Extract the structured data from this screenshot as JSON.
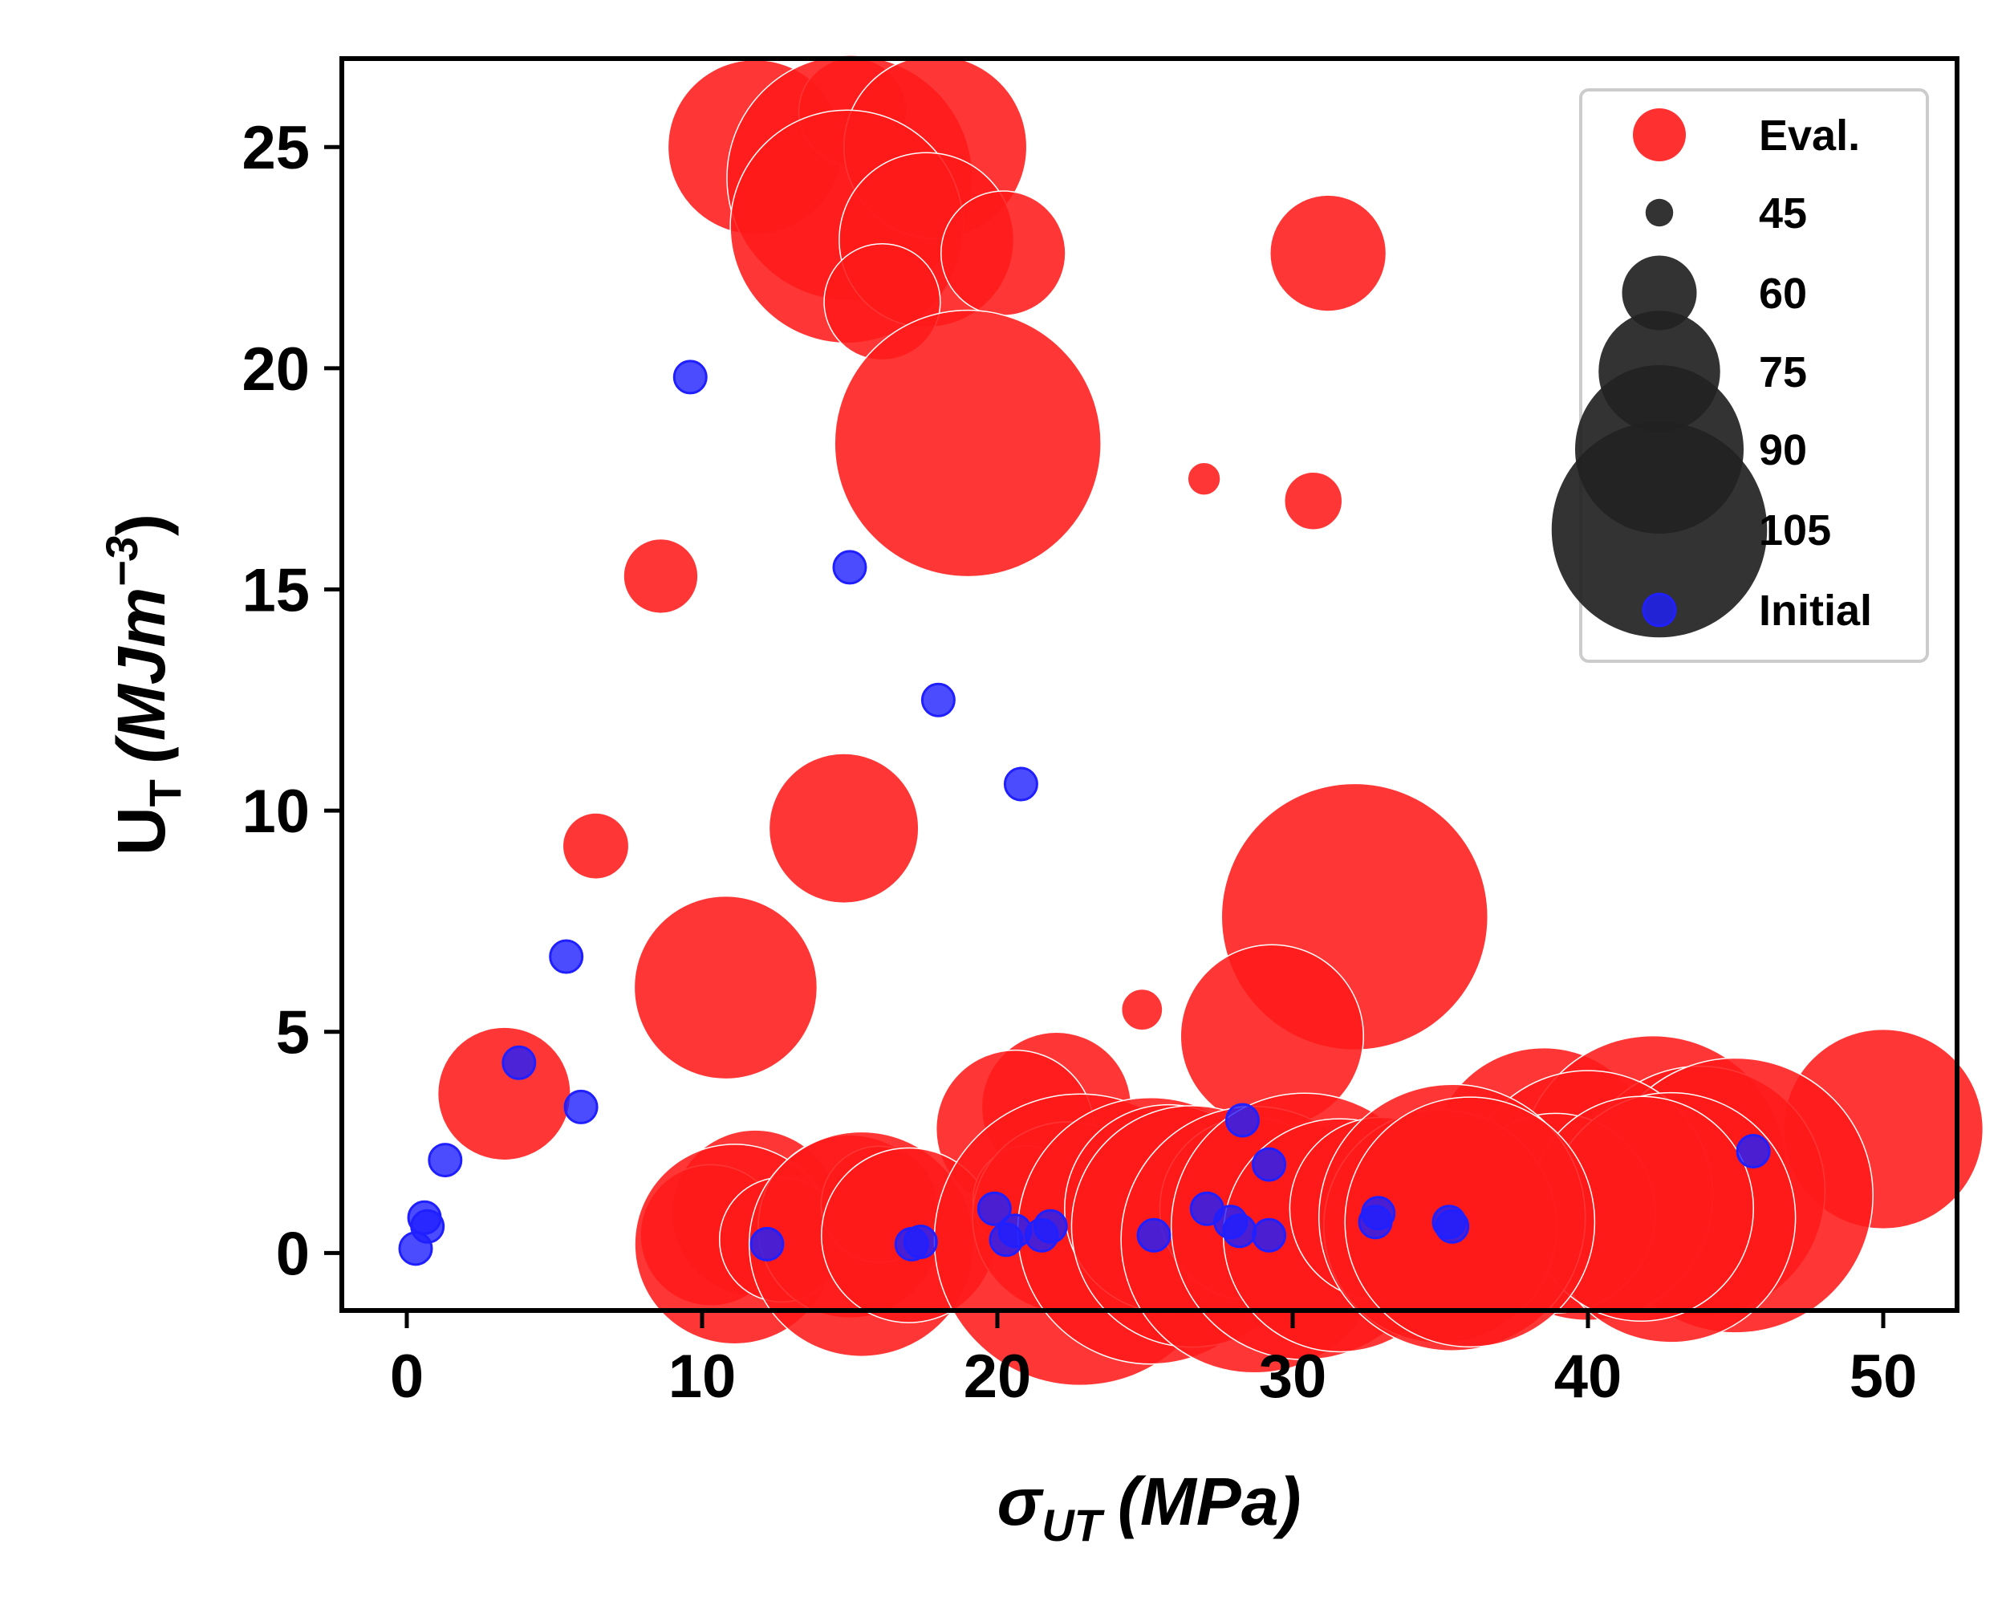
{
  "chart_data": {
    "type": "scatter",
    "xlabel": "σ",
    "xlabel_sub": "UT",
    "xlabel_unit": "(MPa)",
    "ylabel": "U",
    "ylabel_sub": "T",
    "ylabel_unit": "(MJm",
    "ylabel_sup": "−3",
    "ylabel_close": ")",
    "xlim": [
      -2.2,
      52.5
    ],
    "ylim": [
      -1.3,
      27
    ],
    "xticks": [
      0,
      10,
      20,
      30,
      40,
      50
    ],
    "yticks": [
      0,
      5,
      10,
      15,
      20,
      25
    ],
    "grid": false,
    "legend_position": "top-right",
    "size_legend": [
      {
        "label": "45",
        "size": 45
      },
      {
        "label": "60",
        "size": 60
      },
      {
        "label": "75",
        "size": 75
      },
      {
        "label": "90",
        "size": 90
      },
      {
        "label": "105",
        "size": 105
      }
    ],
    "series": [
      {
        "name": "Eval.",
        "color": "#ff1a1a",
        "marker": "circle-size-encoded",
        "points": [
          {
            "x": 11.8,
            "y": 25.0,
            "s": 78
          },
          {
            "x": 15.1,
            "y": 25.8,
            "s": 62
          },
          {
            "x": 15.0,
            "y": 24.3,
            "s": 95
          },
          {
            "x": 17.9,
            "y": 25.0,
            "s": 80
          },
          {
            "x": 14.9,
            "y": 23.2,
            "s": 92
          },
          {
            "x": 17.6,
            "y": 22.9,
            "s": 78
          },
          {
            "x": 20.2,
            "y": 22.6,
            "s": 66
          },
          {
            "x": 31.2,
            "y": 22.6,
            "s": 64
          },
          {
            "x": 16.1,
            "y": 21.5,
            "s": 64
          },
          {
            "x": 19.0,
            "y": 18.3,
            "s": 100
          },
          {
            "x": 27.0,
            "y": 17.5,
            "s": 44
          },
          {
            "x": 30.7,
            "y": 17.0,
            "s": 50
          },
          {
            "x": 8.6,
            "y": 15.3,
            "s": 54
          },
          {
            "x": 6.4,
            "y": 9.2,
            "s": 52
          },
          {
            "x": 14.8,
            "y": 9.6,
            "s": 72
          },
          {
            "x": 32.1,
            "y": 7.6,
            "s": 100
          },
          {
            "x": 10.8,
            "y": 6.0,
            "s": 80
          },
          {
            "x": 24.9,
            "y": 5.5,
            "s": 46
          },
          {
            "x": 29.3,
            "y": 4.9,
            "s": 80
          },
          {
            "x": 3.3,
            "y": 3.6,
            "s": 68
          },
          {
            "x": 22.0,
            "y": 3.3,
            "s": 72
          },
          {
            "x": 20.6,
            "y": 2.8,
            "s": 74
          },
          {
            "x": 50.0,
            "y": 2.8,
            "s": 84
          },
          {
            "x": 38.5,
            "y": 2.1,
            "s": 90
          },
          {
            "x": 42.2,
            "y": 1.9,
            "s": 100
          },
          {
            "x": 43.8,
            "y": 1.4,
            "s": 96
          },
          {
            "x": 45.0,
            "y": 1.3,
            "s": 102
          },
          {
            "x": 40.0,
            "y": 1.3,
            "s": 96
          },
          {
            "x": 38.9,
            "y": 0.9,
            "s": 84
          },
          {
            "x": 42.8,
            "y": 0.8,
            "s": 96
          },
          {
            "x": 41.8,
            "y": 1.0,
            "s": 90
          },
          {
            "x": 11.8,
            "y": 0.9,
            "s": 76
          },
          {
            "x": 10.3,
            "y": 0.4,
            "s": 70
          },
          {
            "x": 11.1,
            "y": 0.2,
            "s": 84
          },
          {
            "x": 12.7,
            "y": 0.3,
            "s": 66
          },
          {
            "x": 15.0,
            "y": 0.6,
            "s": 80
          },
          {
            "x": 16.0,
            "y": 1.1,
            "s": 64
          },
          {
            "x": 15.4,
            "y": 0.2,
            "s": 90
          },
          {
            "x": 17.0,
            "y": 0.4,
            "s": 78
          },
          {
            "x": 21.0,
            "y": 1.2,
            "s": 62
          },
          {
            "x": 22.4,
            "y": 0.8,
            "s": 82
          },
          {
            "x": 22.8,
            "y": 0.3,
            "s": 106
          },
          {
            "x": 25.2,
            "y": 0.5,
            "s": 100
          },
          {
            "x": 25.8,
            "y": 1.0,
            "s": 86
          },
          {
            "x": 26.6,
            "y": 0.6,
            "s": 94
          },
          {
            "x": 28.6,
            "y": 1.0,
            "s": 80
          },
          {
            "x": 28.7,
            "y": 0.3,
            "s": 100
          },
          {
            "x": 30.4,
            "y": 0.6,
            "s": 100
          },
          {
            "x": 31.6,
            "y": 0.4,
            "s": 92
          },
          {
            "x": 33.0,
            "y": 1.0,
            "s": 80
          },
          {
            "x": 35.0,
            "y": 0.6,
            "s": 92
          },
          {
            "x": 35.4,
            "y": 0.8,
            "s": 100
          },
          {
            "x": 36.0,
            "y": 0.7,
            "s": 96
          }
        ]
      },
      {
        "name": "Initial",
        "color": "#1f1fff",
        "marker": "circle",
        "points": [
          {
            "x": 9.6,
            "y": 19.8
          },
          {
            "x": 15.0,
            "y": 15.5
          },
          {
            "x": 18.0,
            "y": 12.5
          },
          {
            "x": 20.8,
            "y": 10.6
          },
          {
            "x": 5.4,
            "y": 6.7
          },
          {
            "x": 3.8,
            "y": 4.3
          },
          {
            "x": 5.9,
            "y": 3.3
          },
          {
            "x": 28.3,
            "y": 3.0
          },
          {
            "x": 29.2,
            "y": 2.0
          },
          {
            "x": 45.6,
            "y": 2.3
          },
          {
            "x": 1.3,
            "y": 2.1
          },
          {
            "x": 0.6,
            "y": 0.8
          },
          {
            "x": 0.7,
            "y": 0.6
          },
          {
            "x": 0.3,
            "y": 0.1
          },
          {
            "x": 12.2,
            "y": 0.2
          },
          {
            "x": 17.1,
            "y": 0.2
          },
          {
            "x": 17.4,
            "y": 0.25
          },
          {
            "x": 19.9,
            "y": 1.0
          },
          {
            "x": 20.3,
            "y": 0.3
          },
          {
            "x": 20.6,
            "y": 0.5
          },
          {
            "x": 21.5,
            "y": 0.4
          },
          {
            "x": 21.8,
            "y": 0.6
          },
          {
            "x": 25.3,
            "y": 0.4
          },
          {
            "x": 27.1,
            "y": 1.0
          },
          {
            "x": 27.9,
            "y": 0.7
          },
          {
            "x": 28.2,
            "y": 0.5
          },
          {
            "x": 29.2,
            "y": 0.4
          },
          {
            "x": 32.8,
            "y": 0.7
          },
          {
            "x": 32.9,
            "y": 0.9
          },
          {
            "x": 35.3,
            "y": 0.7
          },
          {
            "x": 35.4,
            "y": 0.6
          }
        ]
      }
    ]
  }
}
